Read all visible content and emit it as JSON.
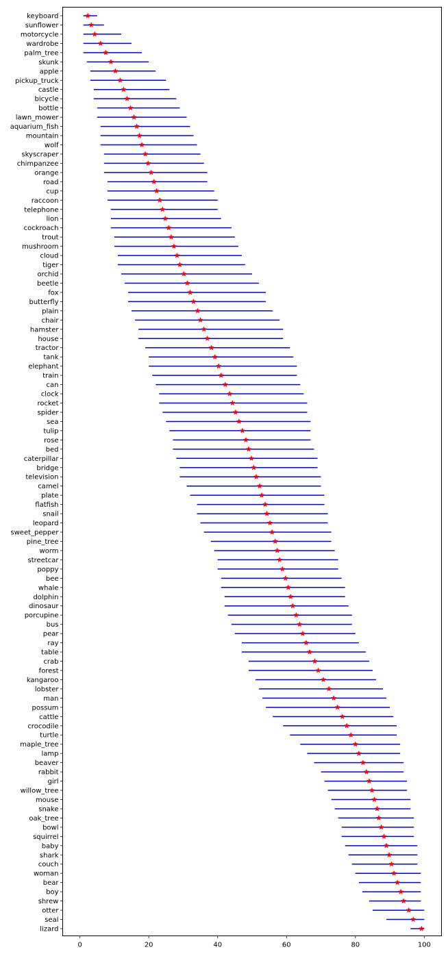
{
  "chart_data": {
    "type": "errorbar",
    "title": "",
    "xlabel": "",
    "ylabel": "",
    "xlim": [
      -5,
      105
    ],
    "xticks": [
      0,
      20,
      40,
      60,
      80,
      100
    ],
    "grid": false,
    "colors": {
      "range_line": "#0000ff",
      "marker": "#ff0000",
      "axes": "#000000"
    },
    "marker": "star",
    "rows": [
      {
        "label": "keyboard",
        "low": 1,
        "high": 5,
        "point": 2.3
      },
      {
        "label": "sunflower",
        "low": 1,
        "high": 7,
        "point": 3.3
      },
      {
        "label": "motorcycle",
        "low": 1,
        "high": 12,
        "point": 4.3
      },
      {
        "label": "wardrobe",
        "low": 1,
        "high": 15,
        "point": 6
      },
      {
        "label": "palm_tree",
        "low": 1,
        "high": 18,
        "point": 7.5
      },
      {
        "label": "skunk",
        "low": 2,
        "high": 20,
        "point": 9
      },
      {
        "label": "apple",
        "low": 3,
        "high": 22,
        "point": 10.3
      },
      {
        "label": "pickup_truck",
        "low": 3,
        "high": 25,
        "point": 11.7
      },
      {
        "label": "castle",
        "low": 4,
        "high": 26,
        "point": 12.7
      },
      {
        "label": "bicycle",
        "low": 4,
        "high": 28,
        "point": 13.7
      },
      {
        "label": "bottle",
        "low": 5,
        "high": 29,
        "point": 14.7
      },
      {
        "label": "lawn_mower",
        "low": 5,
        "high": 31,
        "point": 15.7
      },
      {
        "label": "aquarium_fish",
        "low": 6,
        "high": 32,
        "point": 16.5
      },
      {
        "label": "mountain",
        "low": 6,
        "high": 33,
        "point": 17.3
      },
      {
        "label": "wolf",
        "low": 6,
        "high": 34,
        "point": 18
      },
      {
        "label": "skyscraper",
        "low": 7,
        "high": 35,
        "point": 19
      },
      {
        "label": "chimpanzee",
        "low": 7,
        "high": 36,
        "point": 19.8
      },
      {
        "label": "orange",
        "low": 7,
        "high": 37,
        "point": 20.7
      },
      {
        "label": "road",
        "low": 8,
        "high": 37,
        "point": 21.5
      },
      {
        "label": "cup",
        "low": 8,
        "high": 39,
        "point": 22.3
      },
      {
        "label": "raccoon",
        "low": 8,
        "high": 40,
        "point": 23.2
      },
      {
        "label": "telephone",
        "low": 9,
        "high": 40,
        "point": 24
      },
      {
        "label": "lion",
        "low": 9,
        "high": 41,
        "point": 24.8
      },
      {
        "label": "cockroach",
        "low": 9,
        "high": 44,
        "point": 25.8
      },
      {
        "label": "trout",
        "low": 10,
        "high": 45,
        "point": 26.5
      },
      {
        "label": "mushroom",
        "low": 10,
        "high": 46,
        "point": 27.3
      },
      {
        "label": "cloud",
        "low": 11,
        "high": 47,
        "point": 28.2
      },
      {
        "label": "tiger",
        "low": 11,
        "high": 48,
        "point": 29
      },
      {
        "label": "orchid",
        "low": 12,
        "high": 50,
        "point": 30.2
      },
      {
        "label": "beetle",
        "low": 13,
        "high": 52,
        "point": 31.2
      },
      {
        "label": "fox",
        "low": 14,
        "high": 54,
        "point": 32
      },
      {
        "label": "butterfly",
        "low": 14,
        "high": 54,
        "point": 33
      },
      {
        "label": "plain",
        "low": 15,
        "high": 56,
        "point": 34.2
      },
      {
        "label": "chair",
        "low": 16,
        "high": 58,
        "point": 35
      },
      {
        "label": "hamster",
        "low": 17,
        "high": 59,
        "point": 36
      },
      {
        "label": "house",
        "low": 17,
        "high": 59,
        "point": 37
      },
      {
        "label": "tractor",
        "low": 19,
        "high": 61,
        "point": 38.2
      },
      {
        "label": "tank",
        "low": 20,
        "high": 62,
        "point": 39.2
      },
      {
        "label": "elephant",
        "low": 20,
        "high": 63,
        "point": 40.3
      },
      {
        "label": "train",
        "low": 21,
        "high": 63,
        "point": 41
      },
      {
        "label": "can",
        "low": 22,
        "high": 64,
        "point": 42.2
      },
      {
        "label": "clock",
        "low": 23,
        "high": 65,
        "point": 43.5
      },
      {
        "label": "rocket",
        "low": 23,
        "high": 66,
        "point": 44.3
      },
      {
        "label": "spider",
        "low": 24,
        "high": 66,
        "point": 45.2
      },
      {
        "label": "sea",
        "low": 25,
        "high": 67,
        "point": 46.2
      },
      {
        "label": "tulip",
        "low": 26,
        "high": 67,
        "point": 47.2
      },
      {
        "label": "rose",
        "low": 27,
        "high": 67,
        "point": 48.2
      },
      {
        "label": "bed",
        "low": 27,
        "high": 68,
        "point": 49
      },
      {
        "label": "caterpillar",
        "low": 28,
        "high": 69,
        "point": 49.8
      },
      {
        "label": "bridge",
        "low": 29,
        "high": 69,
        "point": 50.5
      },
      {
        "label": "television",
        "low": 29,
        "high": 70,
        "point": 51.2
      },
      {
        "label": "camel",
        "low": 31,
        "high": 70,
        "point": 52.2
      },
      {
        "label": "plate",
        "low": 32,
        "high": 71,
        "point": 52.8
      },
      {
        "label": "flatfish",
        "low": 34,
        "high": 71,
        "point": 53.8
      },
      {
        "label": "snail",
        "low": 34,
        "high": 72,
        "point": 54.3
      },
      {
        "label": "leopard",
        "low": 35,
        "high": 72,
        "point": 55.2
      },
      {
        "label": "sweet_pepper",
        "low": 36,
        "high": 73,
        "point": 55.8
      },
      {
        "label": "pine_tree",
        "low": 38,
        "high": 73,
        "point": 56.7
      },
      {
        "label": "worm",
        "low": 39,
        "high": 74,
        "point": 57.3
      },
      {
        "label": "streetcar",
        "low": 40,
        "high": 75,
        "point": 58
      },
      {
        "label": "poppy",
        "low": 40,
        "high": 75,
        "point": 58.8
      },
      {
        "label": "bee",
        "low": 41,
        "high": 76,
        "point": 59.7
      },
      {
        "label": "whale",
        "low": 41,
        "high": 77,
        "point": 60.5
      },
      {
        "label": "dolphin",
        "low": 42,
        "high": 77,
        "point": 61.2
      },
      {
        "label": "dinosaur",
        "low": 42,
        "high": 78,
        "point": 61.8
      },
      {
        "label": "porcupine",
        "low": 43,
        "high": 79,
        "point": 62.8
      },
      {
        "label": "bus",
        "low": 44,
        "high": 79,
        "point": 63.8
      },
      {
        "label": "pear",
        "low": 45,
        "high": 80,
        "point": 64.7
      },
      {
        "label": "ray",
        "low": 47,
        "high": 81,
        "point": 65.7
      },
      {
        "label": "table",
        "low": 47,
        "high": 83,
        "point": 66.7
      },
      {
        "label": "crab",
        "low": 49,
        "high": 84,
        "point": 68.2
      },
      {
        "label": "forest",
        "low": 49,
        "high": 85,
        "point": 69.2
      },
      {
        "label": "kangaroo",
        "low": 51,
        "high": 86,
        "point": 70.7
      },
      {
        "label": "lobster",
        "low": 52,
        "high": 88,
        "point": 72.3
      },
      {
        "label": "man",
        "low": 53,
        "high": 89,
        "point": 73.7
      },
      {
        "label": "possum",
        "low": 54,
        "high": 90,
        "point": 74.8
      },
      {
        "label": "cattle",
        "low": 56,
        "high": 91,
        "point": 76.2
      },
      {
        "label": "crocodile",
        "low": 59,
        "high": 92,
        "point": 77.5
      },
      {
        "label": "turtle",
        "low": 61,
        "high": 92,
        "point": 78.7
      },
      {
        "label": "maple_tree",
        "low": 64,
        "high": 93,
        "point": 80
      },
      {
        "label": "lamp",
        "low": 66,
        "high": 93,
        "point": 81
      },
      {
        "label": "beaver",
        "low": 68,
        "high": 94,
        "point": 82.2
      },
      {
        "label": "rabbit",
        "low": 70,
        "high": 94,
        "point": 83.2
      },
      {
        "label": "girl",
        "low": 71,
        "high": 95,
        "point": 84
      },
      {
        "label": "willow_tree",
        "low": 72,
        "high": 95,
        "point": 84.8
      },
      {
        "label": "mouse",
        "low": 73,
        "high": 96,
        "point": 85.5
      },
      {
        "label": "snake",
        "low": 74,
        "high": 96,
        "point": 86.3
      },
      {
        "label": "oak_tree",
        "low": 75,
        "high": 97,
        "point": 86.8
      },
      {
        "label": "bowl",
        "low": 76,
        "high": 97,
        "point": 87.5
      },
      {
        "label": "squirrel",
        "low": 76,
        "high": 97,
        "point": 88.3
      },
      {
        "label": "baby",
        "low": 77,
        "high": 98,
        "point": 89
      },
      {
        "label": "shark",
        "low": 78,
        "high": 98,
        "point": 89.8
      },
      {
        "label": "couch",
        "low": 79,
        "high": 98,
        "point": 90.5
      },
      {
        "label": "woman",
        "low": 80,
        "high": 99,
        "point": 91.2
      },
      {
        "label": "bear",
        "low": 81,
        "high": 99,
        "point": 92.2
      },
      {
        "label": "boy",
        "low": 82,
        "high": 99,
        "point": 93.2
      },
      {
        "label": "shrew",
        "low": 84,
        "high": 99,
        "point": 94
      },
      {
        "label": "otter",
        "low": 85,
        "high": 100,
        "point": 95.5
      },
      {
        "label": "seal",
        "low": 89,
        "high": 100,
        "point": 96.8
      },
      {
        "label": "lizard",
        "low": 96,
        "high": 100,
        "point": 99.2
      }
    ]
  }
}
